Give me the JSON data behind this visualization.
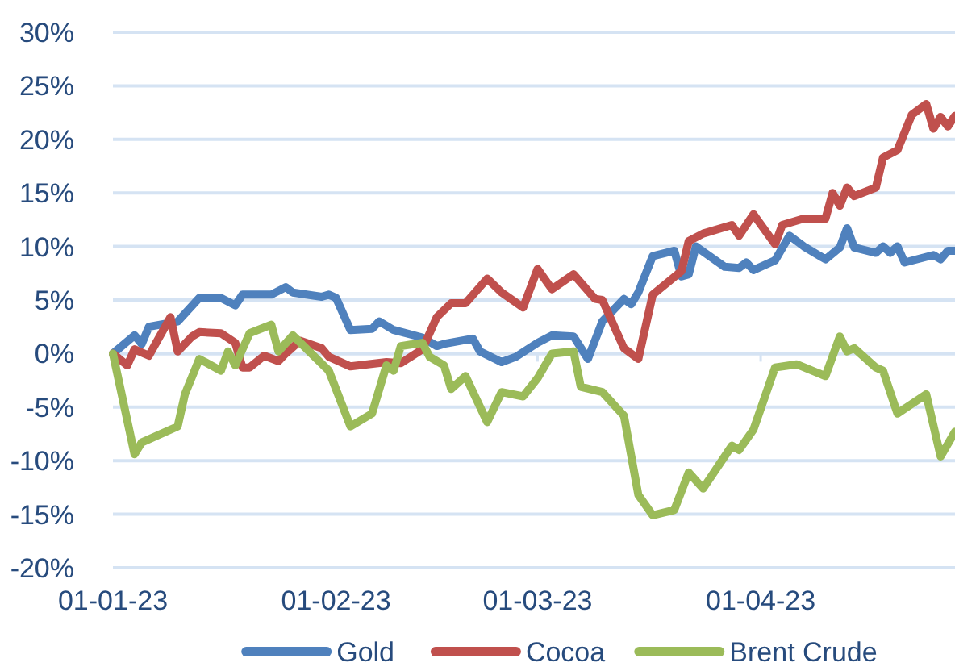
{
  "chart_data": {
    "type": "line",
    "xlim": [
      "2023-01-01",
      "2023-04-28"
    ],
    "xticks": [
      {
        "value": "2023-01-01",
        "label": "01-01-23"
      },
      {
        "value": "2023-02-01",
        "label": "01-02-23"
      },
      {
        "value": "2023-03-01",
        "label": "01-03-23"
      },
      {
        "value": "2023-04-01",
        "label": "01-04-23"
      }
    ],
    "ylim": [
      -20,
      30
    ],
    "yticks": [
      {
        "value": -20,
        "label": "-20%"
      },
      {
        "value": -15,
        "label": "-15%"
      },
      {
        "value": -10,
        "label": "-10%"
      },
      {
        "value": -5,
        "label": "-5%"
      },
      {
        "value": 0,
        "label": "0%"
      },
      {
        "value": 5,
        "label": "5%"
      },
      {
        "value": 10,
        "label": "10%"
      },
      {
        "value": 15,
        "label": "15%"
      },
      {
        "value": 20,
        "label": "20%"
      },
      {
        "value": 25,
        "label": "25%"
      },
      {
        "value": 30,
        "label": "30%"
      }
    ],
    "grid": "y",
    "legend": "bottom",
    "marker": "none",
    "line_style": "solid",
    "series": [
      {
        "name": "Gold",
        "color": "#4f81bd",
        "x": [
          "2023-01-01",
          "2023-01-04",
          "2023-01-05",
          "2023-01-06",
          "2023-01-10",
          "2023-01-13",
          "2023-01-16",
          "2023-01-18",
          "2023-01-19",
          "2023-01-23",
          "2023-01-25",
          "2023-01-26",
          "2023-01-30",
          "2023-01-31",
          "2023-02-01",
          "2023-02-03",
          "2023-02-06",
          "2023-02-07",
          "2023-02-09",
          "2023-02-13",
          "2023-02-15",
          "2023-02-16",
          "2023-02-20",
          "2023-02-21",
          "2023-02-24",
          "2023-02-26",
          "2023-03-01",
          "2023-03-03",
          "2023-03-06",
          "2023-03-08",
          "2023-03-10",
          "2023-03-13",
          "2023-03-14",
          "2023-03-15",
          "2023-03-17",
          "2023-03-20",
          "2023-03-21",
          "2023-03-22",
          "2023-03-23",
          "2023-03-27",
          "2023-03-29",
          "2023-03-30",
          "2023-03-31",
          "2023-04-03",
          "2023-04-05",
          "2023-04-07",
          "2023-04-10",
          "2023-04-12",
          "2023-04-13",
          "2023-04-14",
          "2023-04-17",
          "2023-04-18",
          "2023-04-19",
          "2023-04-20",
          "2023-04-21",
          "2023-04-25",
          "2023-04-26",
          "2023-04-27",
          "2023-04-28"
        ],
        "values": [
          0,
          1.7,
          0.9,
          2.5,
          3.0,
          5.2,
          5.2,
          4.5,
          5.5,
          5.5,
          6.2,
          5.7,
          5.3,
          5.5,
          5.2,
          2.2,
          2.3,
          3.0,
          2.2,
          1.5,
          0.7,
          0.9,
          1.4,
          0.2,
          -0.8,
          -0.3,
          1.0,
          1.7,
          1.6,
          -0.5,
          3.0,
          5.1,
          4.6,
          5.7,
          9.1,
          9.6,
          7.2,
          7.4,
          10.0,
          8.1,
          8.0,
          8.5,
          7.8,
          8.7,
          11.0,
          10.0,
          8.8,
          9.9,
          11.7,
          9.9,
          9.4,
          10.0,
          9.4,
          10.0,
          8.5,
          9.2,
          8.8,
          9.6,
          9.6
        ]
      },
      {
        "name": "Cocoa",
        "color": "#c0504d",
        "x": [
          "2023-01-01",
          "2023-01-03",
          "2023-01-04",
          "2023-01-06",
          "2023-01-09",
          "2023-01-10",
          "2023-01-12",
          "2023-01-13",
          "2023-01-16",
          "2023-01-18",
          "2023-01-19",
          "2023-01-20",
          "2023-01-22",
          "2023-01-24",
          "2023-01-25",
          "2023-01-27",
          "2023-01-30",
          "2023-01-31",
          "2023-02-03",
          "2023-02-08",
          "2023-02-10",
          "2023-02-13",
          "2023-02-15",
          "2023-02-17",
          "2023-02-19",
          "2023-02-22",
          "2023-02-24",
          "2023-02-27",
          "2023-03-01",
          "2023-03-03",
          "2023-03-06",
          "2023-03-09",
          "2023-03-10",
          "2023-03-13",
          "2023-03-15",
          "2023-03-17",
          "2023-03-21",
          "2023-03-22",
          "2023-03-24",
          "2023-03-28",
          "2023-03-29",
          "2023-03-31",
          "2023-04-03",
          "2023-04-04",
          "2023-04-07",
          "2023-04-10",
          "2023-04-11",
          "2023-04-12",
          "2023-04-13",
          "2023-04-14",
          "2023-04-17",
          "2023-04-18",
          "2023-04-20",
          "2023-04-22",
          "2023-04-24",
          "2023-04-25",
          "2023-04-26",
          "2023-04-27",
          "2023-04-28"
        ],
        "values": [
          0,
          -1.1,
          0.4,
          -0.2,
          3.4,
          0.2,
          1.6,
          2.0,
          1.9,
          1.0,
          -1.3,
          -1.3,
          -0.2,
          -0.7,
          0,
          1.2,
          0.5,
          -0.3,
          -1.2,
          -0.8,
          -0.9,
          0.4,
          3.4,
          4.7,
          4.7,
          7.0,
          5.7,
          4.3,
          7.9,
          6.0,
          7.4,
          5.1,
          5.0,
          0.5,
          -0.5,
          5.5,
          7.7,
          10.5,
          11.2,
          12.0,
          11.0,
          13.0,
          10.2,
          12.0,
          12.6,
          12.6,
          15.0,
          13.8,
          15.5,
          14.7,
          15.5,
          18.3,
          19.0,
          22.3,
          23.3,
          21.0,
          22.1,
          21.2,
          22.2
        ]
      },
      {
        "name": "Brent Crude",
        "color": "#9bbb59",
        "x": [
          "2023-01-01",
          "2023-01-04",
          "2023-01-05",
          "2023-01-10",
          "2023-01-11",
          "2023-01-13",
          "2023-01-16",
          "2023-01-17",
          "2023-01-18",
          "2023-01-20",
          "2023-01-23",
          "2023-01-24",
          "2023-01-26",
          "2023-01-31",
          "2023-02-03",
          "2023-02-06",
          "2023-02-08",
          "2023-02-09",
          "2023-02-10",
          "2023-02-13",
          "2023-02-14",
          "2023-02-16",
          "2023-02-17",
          "2023-02-19",
          "2023-02-22",
          "2023-02-24",
          "2023-02-27",
          "2023-03-01",
          "2023-03-03",
          "2023-03-06",
          "2023-03-07",
          "2023-03-10",
          "2023-03-13",
          "2023-03-15",
          "2023-03-17",
          "2023-03-20",
          "2023-03-22",
          "2023-03-24",
          "2023-03-28",
          "2023-03-29",
          "2023-03-31",
          "2023-04-03",
          "2023-04-06",
          "2023-04-10",
          "2023-04-12",
          "2023-04-13",
          "2023-04-14",
          "2023-04-17",
          "2023-04-18",
          "2023-04-20",
          "2023-04-24",
          "2023-04-26",
          "2023-04-28"
        ],
        "values": [
          0,
          -9.4,
          -8.3,
          -6.8,
          -3.8,
          -0.5,
          -1.6,
          0.2,
          -1.1,
          1.9,
          2.7,
          0.2,
          1.7,
          -1.6,
          -6.8,
          -5.6,
          -1.1,
          -1.6,
          0.7,
          1.0,
          -0.3,
          -1.1,
          -3.3,
          -2.1,
          -6.4,
          -3.6,
          -4.0,
          -2.3,
          0,
          0.2,
          -3.1,
          -3.6,
          -5.8,
          -13.2,
          -15.1,
          -14.6,
          -11.1,
          -12.6,
          -8.6,
          -9.0,
          -7.1,
          -1.3,
          -1.0,
          -2.1,
          1.6,
          0.2,
          0.5,
          -1.3,
          -1.6,
          -5.6,
          -3.8,
          -9.6,
          -7.3
        ]
      }
    ]
  }
}
